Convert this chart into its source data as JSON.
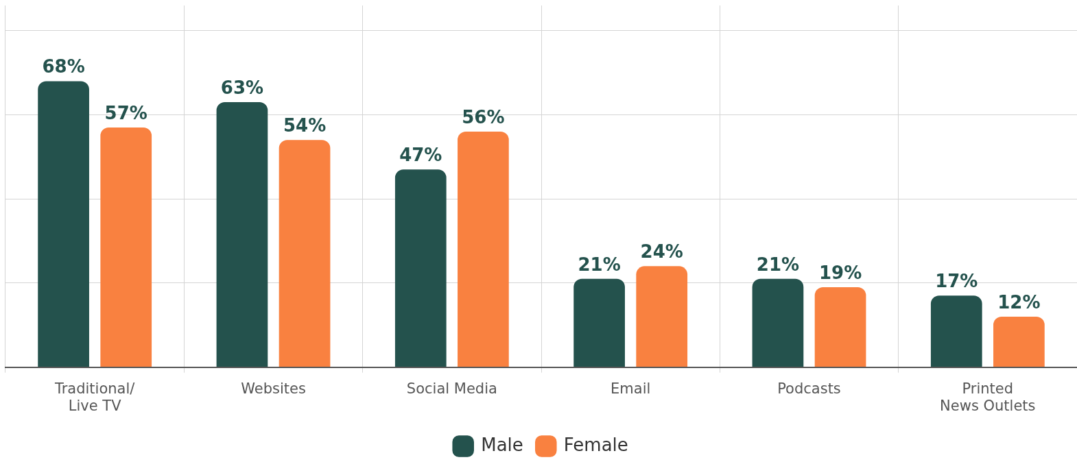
{
  "chart_data": {
    "type": "bar",
    "categories": [
      "Traditional/\nLive TV",
      "Websites",
      "Social Media",
      "Email",
      "Podcasts",
      "Printed\nNews Outlets"
    ],
    "series": [
      {
        "name": "Male",
        "color": "#24524d",
        "values": [
          68,
          63,
          47,
          21,
          21,
          17
        ],
        "value_labels": [
          "68%",
          "63%",
          "47%",
          "21%",
          "21%",
          "17%"
        ]
      },
      {
        "name": "Female",
        "color": "#f98140",
        "values": [
          57,
          54,
          56,
          24,
          19,
          12
        ],
        "value_labels": [
          "57%",
          "54%",
          "56%",
          "24%",
          "19%",
          "12%"
        ]
      }
    ],
    "ylim": [
      0,
      86
    ],
    "yticks": [
      {
        "value": 0,
        "label": null
      },
      {
        "value": 20,
        "label": null
      },
      {
        "value": 40,
        "label": null
      },
      {
        "value": 60,
        "label": null
      },
      {
        "value": 80,
        "label": null
      }
    ],
    "tick_labels": "x",
    "grid": true,
    "legend": "bottom"
  }
}
